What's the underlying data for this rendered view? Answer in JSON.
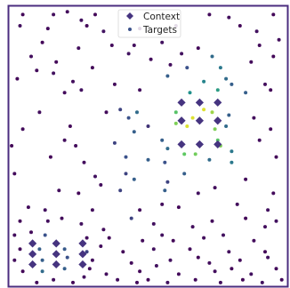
{
  "chart_data": {
    "type": "scatter",
    "xlim": [
      0,
      1
    ],
    "ylim": [
      0,
      1
    ],
    "grid": false,
    "legend_position": "top-center",
    "title": "",
    "xlabel": "",
    "ylabel": "",
    "colormap": [
      "#440154",
      "#3b528b",
      "#21918c",
      "#5ec962",
      "#fde725"
    ],
    "series": [
      {
        "name": "Context",
        "marker": "diamond",
        "color": "#463480",
        "points": [
          [
            0.62,
            0.655
          ],
          [
            0.685,
            0.655
          ],
          [
            0.75,
            0.655
          ],
          [
            0.62,
            0.59
          ],
          [
            0.685,
            0.59
          ],
          [
            0.75,
            0.59
          ],
          [
            0.62,
            0.505
          ],
          [
            0.685,
            0.505
          ],
          [
            0.75,
            0.505
          ],
          [
            0.085,
            0.15
          ],
          [
            0.17,
            0.15
          ],
          [
            0.265,
            0.15
          ],
          [
            0.085,
            0.112
          ],
          [
            0.17,
            0.112
          ],
          [
            0.265,
            0.112
          ],
          [
            0.085,
            0.075
          ],
          [
            0.17,
            0.075
          ],
          [
            0.265,
            0.075
          ]
        ]
      },
      {
        "name": "Targets",
        "marker": "dot",
        "color": "#3b528b",
        "points": [
          [
            0.05,
            0.97,
            0.02
          ],
          [
            0.16,
            0.97,
            0.04
          ],
          [
            0.21,
            0.98,
            0.03
          ],
          [
            0.26,
            0.95,
            0.05
          ],
          [
            0.31,
            0.97,
            0.02
          ],
          [
            0.72,
            0.97,
            0.03
          ],
          [
            0.79,
            0.96,
            0.04
          ],
          [
            0.95,
            0.97,
            0.02
          ],
          [
            0.04,
            0.93,
            0.05
          ],
          [
            0.14,
            0.92,
            0.03
          ],
          [
            0.28,
            0.93,
            0.02
          ],
          [
            0.34,
            0.91,
            0.06
          ],
          [
            0.47,
            0.92,
            0.03
          ],
          [
            0.6,
            0.93,
            0.04
          ],
          [
            0.83,
            0.93,
            0.02
          ],
          [
            0.89,
            0.91,
            0.05
          ],
          [
            0.12,
            0.87,
            0.02
          ],
          [
            0.25,
            0.85,
            0.04
          ],
          [
            0.37,
            0.86,
            0.03
          ],
          [
            0.55,
            0.87,
            0.05
          ],
          [
            0.68,
            0.85,
            0.02
          ],
          [
            0.9,
            0.86,
            0.03
          ],
          [
            0.97,
            0.88,
            0.04
          ],
          [
            0.45,
            0.86,
            0.04
          ],
          [
            0.08,
            0.82,
            0.04
          ],
          [
            0.17,
            0.8,
            0.02
          ],
          [
            0.43,
            0.83,
            0.06
          ],
          [
            0.51,
            0.81,
            0.03
          ],
          [
            0.73,
            0.82,
            0.35
          ],
          [
            0.95,
            0.82,
            0.02
          ],
          [
            0.62,
            0.83,
            0.05
          ],
          [
            0.1,
            0.77,
            0.03
          ],
          [
            0.16,
            0.76,
            0.05
          ],
          [
            0.3,
            0.78,
            0.02
          ],
          [
            0.58,
            0.79,
            0.04
          ],
          [
            0.64,
            0.78,
            0.25
          ],
          [
            0.76,
            0.78,
            0.4
          ],
          [
            0.87,
            0.8,
            0.03
          ],
          [
            0.03,
            0.74,
            0.02
          ],
          [
            0.23,
            0.73,
            0.04
          ],
          [
            0.38,
            0.72,
            0.03
          ],
          [
            0.57,
            0.75,
            0.3
          ],
          [
            0.7,
            0.73,
            0.45
          ],
          [
            0.78,
            0.74,
            0.35
          ],
          [
            0.92,
            0.72,
            0.04
          ],
          [
            0.2,
            0.69,
            0.03
          ],
          [
            0.26,
            0.7,
            0.05
          ],
          [
            0.47,
            0.7,
            0.04
          ],
          [
            0.65,
            0.69,
            0.5
          ],
          [
            0.75,
            0.7,
            0.55
          ],
          [
            0.85,
            0.69,
            0.3
          ],
          [
            0.94,
            0.7,
            0.02
          ],
          [
            0.8,
            0.72,
            0.3
          ],
          [
            0.11,
            0.62,
            0.04
          ],
          [
            0.35,
            0.62,
            0.03
          ],
          [
            0.4,
            0.63,
            0.2
          ],
          [
            0.43,
            0.6,
            0.25
          ],
          [
            0.46,
            0.62,
            0.35
          ],
          [
            0.6,
            0.62,
            0.72
          ],
          [
            0.66,
            0.6,
            0.95
          ],
          [
            0.7,
            0.63,
            0.95
          ],
          [
            0.73,
            0.62,
            0.85
          ],
          [
            0.79,
            0.61,
            0.3
          ],
          [
            0.88,
            0.6,
            0.04
          ],
          [
            0.05,
            0.56,
            0.03
          ],
          [
            0.22,
            0.57,
            0.02
          ],
          [
            0.45,
            0.55,
            0.3
          ],
          [
            0.5,
            0.57,
            0.15
          ],
          [
            0.6,
            0.58,
            0.8
          ],
          [
            0.64,
            0.57,
            0.95
          ],
          [
            0.74,
            0.56,
            0.8
          ],
          [
            0.78,
            0.57,
            0.35
          ],
          [
            0.94,
            0.56,
            0.03
          ],
          [
            0.01,
            0.5,
            0.02
          ],
          [
            0.2,
            0.52,
            0.04
          ],
          [
            0.24,
            0.5,
            0.03
          ],
          [
            0.38,
            0.51,
            0.2
          ],
          [
            0.55,
            0.52,
            0.3
          ],
          [
            0.57,
            0.49,
            0.35
          ],
          [
            0.63,
            0.47,
            0.75
          ],
          [
            0.67,
            0.47,
            0.78
          ],
          [
            0.75,
            0.52,
            0.72
          ],
          [
            0.76,
            0.5,
            0.8
          ],
          [
            0.8,
            0.48,
            0.4
          ],
          [
            0.9,
            0.52,
            0.04
          ],
          [
            0.15,
            0.46,
            0.02
          ],
          [
            0.27,
            0.44,
            0.04
          ],
          [
            0.42,
            0.46,
            0.25
          ],
          [
            0.5,
            0.45,
            0.3
          ],
          [
            0.56,
            0.44,
            0.25
          ],
          [
            0.72,
            0.45,
            0.35
          ],
          [
            0.8,
            0.44,
            0.4
          ],
          [
            0.96,
            0.46,
            0.02
          ],
          [
            0.02,
            0.4,
            0.03
          ],
          [
            0.31,
            0.39,
            0.05
          ],
          [
            0.33,
            0.36,
            0.04
          ],
          [
            0.42,
            0.4,
            0.2
          ],
          [
            0.45,
            0.38,
            0.3
          ],
          [
            0.57,
            0.37,
            0.2
          ],
          [
            0.63,
            0.4,
            0.3
          ],
          [
            0.85,
            0.38,
            0.03
          ],
          [
            0.18,
            0.34,
            0.04
          ],
          [
            0.25,
            0.33,
            0.02
          ],
          [
            0.4,
            0.34,
            0.2
          ],
          [
            0.56,
            0.34,
            0.3
          ],
          [
            0.68,
            0.33,
            0.05
          ],
          [
            0.74,
            0.35,
            0.04
          ],
          [
            0.95,
            0.33,
            0.03
          ],
          [
            0.07,
            0.28,
            0.03
          ],
          [
            0.13,
            0.27,
            0.05
          ],
          [
            0.3,
            0.27,
            0.04
          ],
          [
            0.47,
            0.27,
            0.03
          ],
          [
            0.61,
            0.28,
            0.02
          ],
          [
            0.82,
            0.29,
            0.04
          ],
          [
            0.93,
            0.27,
            0.05
          ],
          [
            0.55,
            0.29,
            0.04
          ],
          [
            0.04,
            0.23,
            0.02
          ],
          [
            0.14,
            0.23,
            0.04
          ],
          [
            0.19,
            0.24,
            0.03
          ],
          [
            0.26,
            0.22,
            0.05
          ],
          [
            0.34,
            0.2,
            0.04
          ],
          [
            0.44,
            0.24,
            0.2
          ],
          [
            0.52,
            0.22,
            0.05
          ],
          [
            0.66,
            0.21,
            0.04
          ],
          [
            0.73,
            0.23,
            0.03
          ],
          [
            0.85,
            0.24,
            0.02
          ],
          [
            0.92,
            0.21,
            0.04
          ],
          [
            0.96,
            0.23,
            0.05
          ],
          [
            0.02,
            0.18,
            0.04
          ],
          [
            0.08,
            0.19,
            0.03
          ],
          [
            0.13,
            0.18,
            0.25
          ],
          [
            0.28,
            0.17,
            0.04
          ],
          [
            0.36,
            0.17,
            0.02
          ],
          [
            0.48,
            0.16,
            0.03
          ],
          [
            0.55,
            0.18,
            0.05
          ],
          [
            0.59,
            0.16,
            0.02
          ],
          [
            0.7,
            0.17,
            0.04
          ],
          [
            0.77,
            0.18,
            0.05
          ],
          [
            0.88,
            0.16,
            0.03
          ],
          [
            0.04,
            0.13,
            0.03
          ],
          [
            0.11,
            0.13,
            0.3
          ],
          [
            0.2,
            0.13,
            0.28
          ],
          [
            0.28,
            0.12,
            0.2
          ],
          [
            0.33,
            0.14,
            0.04
          ],
          [
            0.41,
            0.12,
            0.02
          ],
          [
            0.52,
            0.13,
            0.05
          ],
          [
            0.65,
            0.13,
            0.03
          ],
          [
            0.79,
            0.12,
            0.04
          ],
          [
            0.92,
            0.12,
            0.02
          ],
          [
            0.02,
            0.09,
            0.04
          ],
          [
            0.12,
            0.09,
            0.3
          ],
          [
            0.21,
            0.1,
            0.25
          ],
          [
            0.3,
            0.09,
            0.04
          ],
          [
            0.44,
            0.08,
            0.03
          ],
          [
            0.58,
            0.09,
            0.05
          ],
          [
            0.68,
            0.1,
            0.02
          ],
          [
            0.72,
            0.08,
            0.04
          ],
          [
            0.83,
            0.09,
            0.03
          ],
          [
            0.93,
            0.1,
            0.05
          ],
          [
            0.05,
            0.05,
            0.02
          ],
          [
            0.12,
            0.05,
            0.35
          ],
          [
            0.2,
            0.06,
            0.3
          ],
          [
            0.29,
            0.06,
            0.03
          ],
          [
            0.35,
            0.04,
            0.04
          ],
          [
            0.47,
            0.05,
            0.02
          ],
          [
            0.53,
            0.07,
            0.05
          ],
          [
            0.61,
            0.04,
            0.03
          ],
          [
            0.74,
            0.05,
            0.04
          ],
          [
            0.8,
            0.06,
            0.02
          ],
          [
            0.87,
            0.04,
            0.05
          ],
          [
            0.96,
            0.06,
            0.03
          ],
          [
            0.1,
            0.01,
            0.03
          ],
          [
            0.16,
            0.02,
            0.04
          ],
          [
            0.23,
            0.01,
            0.02
          ],
          [
            0.27,
            0.03,
            0.05
          ],
          [
            0.39,
            0.02,
            0.04
          ],
          [
            0.46,
            0.01,
            0.03
          ],
          [
            0.5,
            0.02,
            0.02
          ],
          [
            0.57,
            0.01,
            0.05
          ],
          [
            0.67,
            0.02,
            0.03
          ],
          [
            0.76,
            0.01,
            0.04
          ],
          [
            0.84,
            0.02,
            0.02
          ],
          [
            0.91,
            0.01,
            0.05
          ],
          [
            0.98,
            0.02,
            0.03
          ]
        ]
      }
    ]
  }
}
